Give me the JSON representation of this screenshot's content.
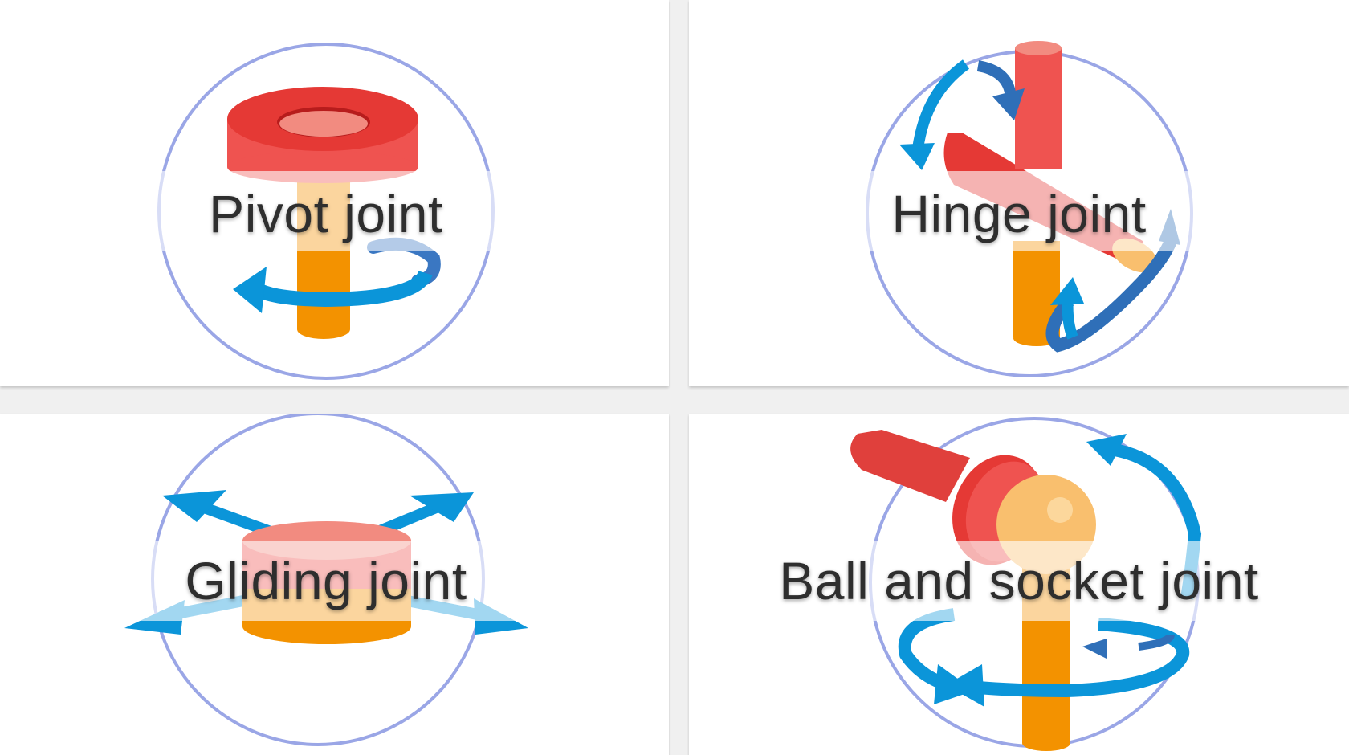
{
  "cards": [
    {
      "id": "pivot",
      "label": "Pivot joint",
      "icon": "pivot-joint-icon"
    },
    {
      "id": "hinge",
      "label": "Hinge joint",
      "icon": "hinge-joint-icon"
    },
    {
      "id": "gliding",
      "label": "Gliding joint",
      "icon": "gliding-joint-icon"
    },
    {
      "id": "ball",
      "label": "Ball and socket joint",
      "icon": "ball-and-socket-joint-icon"
    }
  ],
  "colors": {
    "ring": "#9aa6e6",
    "red": "#e53935",
    "red_light": "#ef5350",
    "salmon": "#f28b80",
    "orange": "#f39200",
    "orange_light": "#f9bf6e",
    "blue": "#0b95d9",
    "blue_dark": "#2f6fb8"
  }
}
